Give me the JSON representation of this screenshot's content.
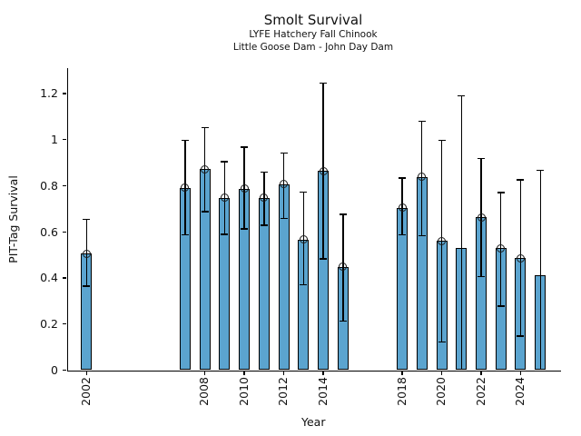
{
  "title": "Smolt Survival",
  "subtitle1": "LYFE Hatchery Fall Chinook",
  "subtitle2": "Little Goose Dam - John Day Dam",
  "chart_data": {
    "type": "bar",
    "title": "Smolt Survival",
    "subtitles": [
      "LYFE Hatchery Fall Chinook",
      "Little Goose Dam - John Day Dam"
    ],
    "xlabel": "Year",
    "ylabel": "PIT-Tag Survival",
    "bar_color": "#5BA4CF",
    "bar_edge_color": "#000000",
    "error_bar_color": "#000000",
    "marker_style": "open-circle",
    "grid": false,
    "legend": "none",
    "xlim": [
      2001.1,
      2026.1
    ],
    "ylim": [
      0,
      1.31
    ],
    "xticks": [
      2002,
      2008,
      2010,
      2012,
      2014,
      2018,
      2020,
      2022,
      2024
    ],
    "xtick_labels": [
      "2002",
      "2008",
      "2010",
      "2012",
      "2014",
      "2018",
      "2020",
      "2022",
      "2024"
    ],
    "ytick_values": [
      0,
      0.2,
      0.4,
      0.6,
      0.8,
      1.0,
      1.2
    ],
    "ytick_labels": [
      "0",
      "0.2",
      "0.4",
      "0.6",
      "0.8",
      "1",
      "1.2"
    ],
    "points": [
      {
        "year": 2002,
        "value": 0.505,
        "lo": 0.364,
        "hi": 0.653,
        "marker": true,
        "lo_cap": true
      },
      {
        "year": 2007,
        "value": 0.79,
        "lo": 0.587,
        "hi": 0.997,
        "marker": true,
        "lo_cap": true
      },
      {
        "year": 2008,
        "value": 0.872,
        "lo": 0.688,
        "hi": 1.053,
        "marker": true,
        "lo_cap": true
      },
      {
        "year": 2009,
        "value": 0.747,
        "lo": 0.589,
        "hi": 0.905,
        "marker": true,
        "lo_cap": true
      },
      {
        "year": 2010,
        "value": 0.788,
        "lo": 0.613,
        "hi": 0.968,
        "marker": true,
        "lo_cap": true
      },
      {
        "year": 2011,
        "value": 0.747,
        "lo": 0.629,
        "hi": 0.859,
        "marker": true,
        "lo_cap": true
      },
      {
        "year": 2012,
        "value": 0.806,
        "lo": 0.657,
        "hi": 0.942,
        "marker": true,
        "lo_cap": true
      },
      {
        "year": 2013,
        "value": 0.567,
        "lo": 0.37,
        "hi": 0.773,
        "marker": true,
        "lo_cap": true
      },
      {
        "year": 2014,
        "value": 0.863,
        "lo": 0.482,
        "hi": 1.246,
        "marker": true,
        "lo_cap": true
      },
      {
        "year": 2015,
        "value": 0.449,
        "lo": 0.213,
        "hi": 0.676,
        "marker": true,
        "lo_cap": true
      },
      {
        "year": 2018,
        "value": 0.705,
        "lo": 0.587,
        "hi": 0.833,
        "marker": true,
        "lo_cap": true
      },
      {
        "year": 2019,
        "value": 0.839,
        "lo": 0.584,
        "hi": 1.08,
        "marker": true,
        "lo_cap": true
      },
      {
        "year": 2020,
        "value": 0.561,
        "lo": 0.123,
        "hi": 0.997,
        "marker": true,
        "lo_cap": true
      },
      {
        "year": 2021,
        "value": 0.528,
        "lo": 0.0,
        "hi": 1.191,
        "marker": false,
        "lo_cap": false
      },
      {
        "year": 2022,
        "value": 0.662,
        "lo": 0.406,
        "hi": 0.918,
        "marker": true,
        "lo_cap": true
      },
      {
        "year": 2023,
        "value": 0.528,
        "lo": 0.278,
        "hi": 0.771,
        "marker": true,
        "lo_cap": true
      },
      {
        "year": 2024,
        "value": 0.486,
        "lo": 0.147,
        "hi": 0.826,
        "marker": true,
        "lo_cap": true
      },
      {
        "year": 2025,
        "value": 0.411,
        "lo": 0.0,
        "hi": 0.867,
        "marker": false,
        "lo_cap": false
      }
    ]
  }
}
